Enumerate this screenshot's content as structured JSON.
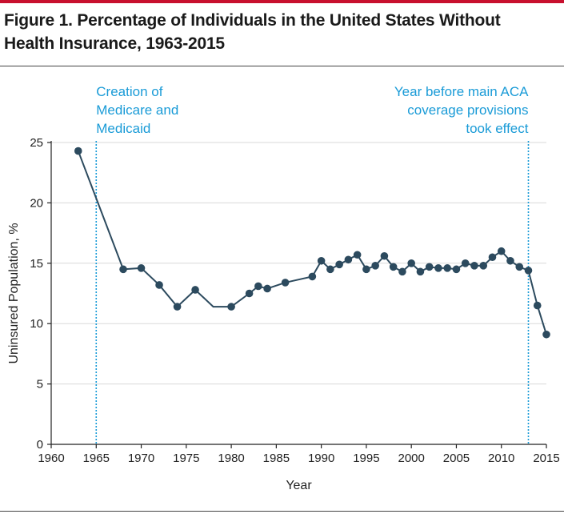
{
  "figure": {
    "title_line1": "Figure 1. Percentage of Individuals in the United States Without",
    "title_line2": "Health Insurance, 1963-2015"
  },
  "colors": {
    "accent_rule": "#c8102e",
    "series_line": "#2c4a5e",
    "marker_fill": "#2c4a5e",
    "annotation": "#1a9bd7",
    "grid": "#d9d9d9"
  },
  "chart_data": {
    "type": "line",
    "title": "Figure 1. Percentage of Individuals in the United States Without Health Insurance, 1963-2015",
    "xlabel": "Year",
    "ylabel": "Uninsured Population, %",
    "xlim": [
      1960,
      2015
    ],
    "ylim": [
      0,
      25
    ],
    "xticks": [
      1960,
      1965,
      1970,
      1975,
      1980,
      1985,
      1990,
      1995,
      2000,
      2005,
      2010,
      2015
    ],
    "yticks": [
      0,
      5,
      10,
      15,
      20,
      25
    ],
    "grid": "horizontal",
    "series": [
      {
        "x": [
          1963,
          1968,
          1970,
          1972,
          1974,
          1976,
          1978,
          1980,
          1982,
          1983,
          1984,
          1986,
          1989,
          1990,
          1991,
          1992,
          1993,
          1994,
          1995,
          1996,
          1997,
          1998,
          1999,
          2000,
          2001,
          2002,
          2003,
          2004,
          2005,
          2006,
          2007,
          2008,
          2009,
          2010,
          2011,
          2012,
          2013,
          2014,
          2015
        ],
        "y": [
          24.3,
          14.5,
          14.6,
          13.2,
          11.4,
          12.8,
          11.4,
          11.4,
          12.5,
          13.1,
          12.9,
          13.4,
          13.9,
          15.2,
          14.5,
          14.9,
          15.3,
          15.7,
          14.5,
          14.8,
          15.6,
          14.7,
          14.3,
          15.0,
          14.3,
          14.7,
          14.6,
          14.6,
          14.5,
          15.0,
          14.8,
          14.8,
          15.5,
          16.0,
          15.2,
          14.7,
          14.4,
          11.5,
          9.1
        ],
        "markers_hidden_at_x": [
          1978
        ]
      }
    ],
    "annotations": [
      {
        "x": 1965,
        "lines": [
          "Creation of",
          "Medicare and",
          "Medicaid"
        ],
        "align": "left"
      },
      {
        "x": 2013,
        "lines": [
          "Year before main ACA",
          "coverage provisions",
          "took effect"
        ],
        "align": "right"
      }
    ]
  }
}
